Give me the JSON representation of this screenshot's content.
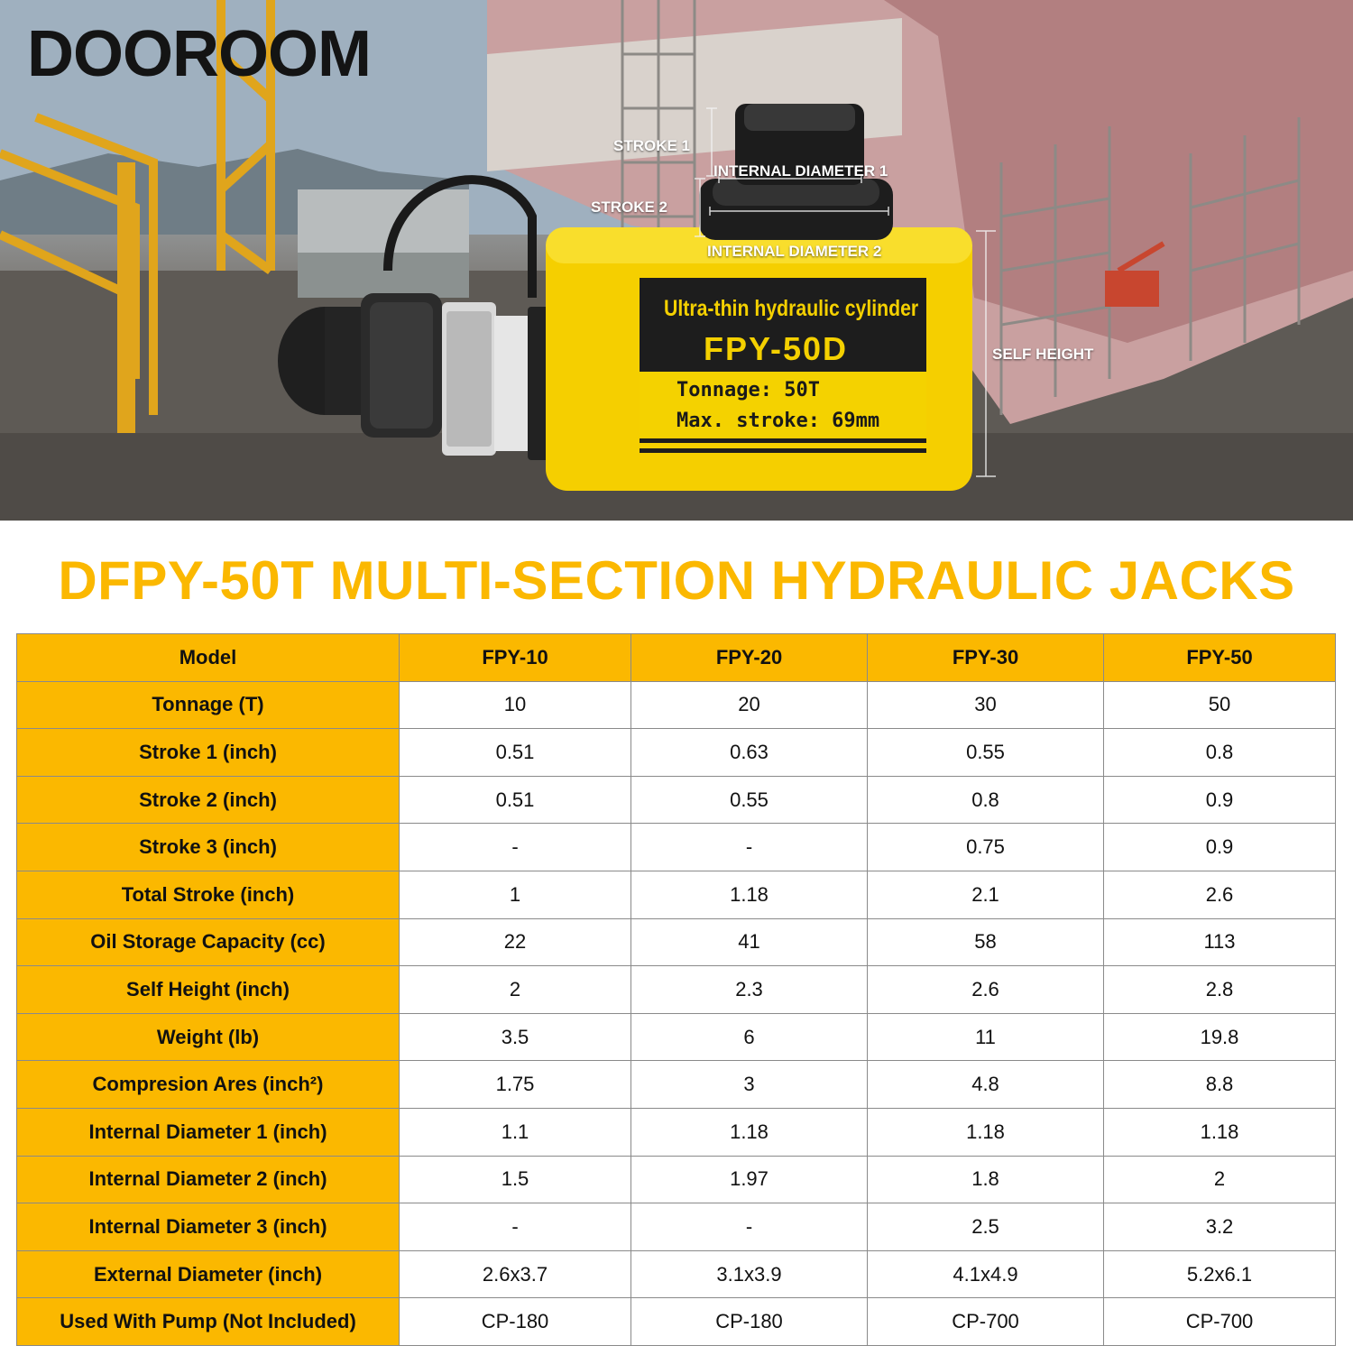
{
  "brand": {
    "name": "DOOROOM"
  },
  "hero": {
    "labels": {
      "stroke1": "STROKE 1",
      "stroke2": "STROKE 2",
      "internal_diameter1": "INTERNAL DIAMETER 1",
      "internal_diameter2": "INTERNAL DIAMETER 2",
      "self_height": "SELF HEIGHT"
    },
    "plate": {
      "line1": "Ultra-thin hydraulic cylinder",
      "line2": "FPY-50D",
      "line3": "Tonnage: 50T",
      "line4": "Max. stroke: 69mm"
    },
    "colors": {
      "cylinder_yellow": "#f7d000",
      "plate_black": "#1d1d1d",
      "accent": "#fbb800"
    }
  },
  "heading": "DFPY-50T MULTI-SECTION HYDRAULIC JACKS",
  "table": {
    "header": {
      "label": "Model",
      "cols": [
        "FPY-10",
        "FPY-20",
        "FPY-30",
        "FPY-50"
      ]
    },
    "rows": [
      {
        "label": "Tonnage (T)",
        "values": [
          "10",
          "20",
          "30",
          "50"
        ]
      },
      {
        "label": "Stroke 1 (inch)",
        "values": [
          "0.51",
          "0.63",
          "0.55",
          "0.8"
        ]
      },
      {
        "label": "Stroke 2 (inch)",
        "values": [
          "0.51",
          "0.55",
          "0.8",
          "0.9"
        ]
      },
      {
        "label": "Stroke 3 (inch)",
        "values": [
          "-",
          "-",
          "0.75",
          "0.9"
        ]
      },
      {
        "label": "Total Stroke (inch)",
        "values": [
          "1",
          "1.18",
          "2.1",
          "2.6"
        ]
      },
      {
        "label": "Oil Storage Capacity (cc)",
        "values": [
          "22",
          "41",
          "58",
          "113"
        ]
      },
      {
        "label": "Self Height (inch)",
        "values": [
          "2",
          "2.3",
          "2.6",
          "2.8"
        ]
      },
      {
        "label": "Weight (lb)",
        "values": [
          "3.5",
          "6",
          "11",
          "19.8"
        ]
      },
      {
        "label": "Compresion Ares (inch²)",
        "values": [
          "1.75",
          "3",
          "4.8",
          "8.8"
        ]
      },
      {
        "label": "Internal Diameter 1 (inch)",
        "values": [
          "1.1",
          "1.18",
          "1.18",
          "1.18"
        ]
      },
      {
        "label": "Internal Diameter 2 (inch)",
        "values": [
          "1.5",
          "1.97",
          "1.8",
          "2"
        ]
      },
      {
        "label": "Internal Diameter 3 (inch)",
        "values": [
          "-",
          "-",
          "2.5",
          "3.2"
        ]
      },
      {
        "label": "External Diameter (inch)",
        "values": [
          "2.6x3.7",
          "3.1x3.9",
          "4.1x4.9",
          "5.2x6.1"
        ]
      },
      {
        "label": "Used With Pump (Not Included)",
        "values": [
          "CP-180",
          "CP-180",
          "CP-700",
          "CP-700"
        ]
      }
    ]
  }
}
